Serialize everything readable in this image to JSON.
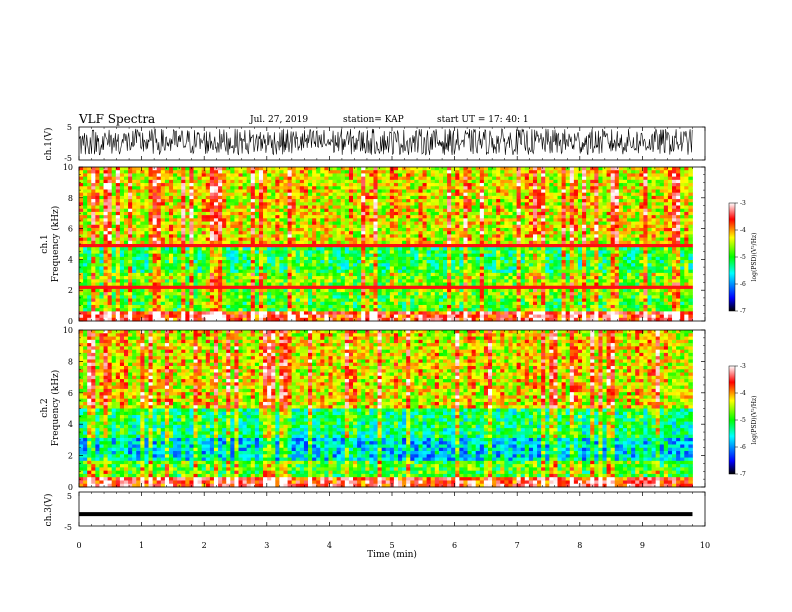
{
  "header": {
    "title": "VLF Spectra",
    "date": "Jul. 27, 2019",
    "station": "station= KAP",
    "start": "start UT = 17: 40: 1"
  },
  "chart_data": [
    {
      "type": "line",
      "name": "ch.1 waveform",
      "ylabel": "ch.1(V)",
      "ylim": [
        -5,
        5
      ],
      "yticks": [
        "5",
        "-5"
      ],
      "x": [
        0,
        0.25,
        0.5,
        0.75,
        1,
        1.25,
        1.5,
        1.75,
        2,
        2.25,
        2.5,
        2.75,
        3,
        3.25,
        3.5,
        3.75,
        4,
        4.25,
        4.5,
        4.75,
        5,
        5.25,
        5.5,
        5.75,
        6,
        6.25,
        6.5,
        6.75,
        7,
        7.25,
        7.5,
        7.75,
        8,
        8.25,
        8.5,
        8.75,
        9,
        9.25,
        9.5,
        9.75
      ],
      "y_range_approx": [
        -3.5,
        4.5
      ]
    },
    {
      "type": "heatmap",
      "name": "ch.1 spectrogram",
      "ylabel": "ch.1\nFrequency (kHz)",
      "ylim": [
        0,
        10
      ],
      "yticks": [
        "0",
        "2",
        "4",
        "6",
        "8",
        "10"
      ],
      "colorbar": {
        "label": "log(PSD)(V²/Hz)",
        "range": [
          -7,
          -3
        ],
        "ticks": [
          "-3",
          "-4",
          "-5",
          "-6",
          "-7"
        ],
        "colors": [
          "#000000",
          "#0000ff",
          "#00ffff",
          "#00ff00",
          "#ffff00",
          "#ff0000",
          "#ffffff"
        ]
      },
      "x_extent_min": [
        0,
        9.8
      ]
    },
    {
      "type": "heatmap",
      "name": "ch.2 spectrogram",
      "ylabel": "ch.2\nFrequency (kHz)",
      "ylim": [
        0,
        10
      ],
      "yticks": [
        "0",
        "2",
        "4",
        "6",
        "8",
        "10"
      ],
      "colorbar": {
        "label": "log(PSD)(V²/Hz)",
        "range": [
          -7,
          -3
        ],
        "ticks": [
          "-3",
          "-4",
          "-5",
          "-6",
          "-7"
        ],
        "colors": [
          "#000000",
          "#0000ff",
          "#00ffff",
          "#00ff00",
          "#ffff00",
          "#ff0000",
          "#ffffff"
        ]
      },
      "x_extent_min": [
        0,
        9.8
      ]
    },
    {
      "type": "line",
      "name": "ch.3 waveform",
      "ylabel": "ch.3(V)",
      "ylim": [
        -5,
        5
      ],
      "yticks": [
        "5",
        "-5"
      ],
      "x": [
        0,
        9.8
      ],
      "y": [
        -1.5,
        -1.5
      ]
    }
  ],
  "xaxis": {
    "label": "Time (min)",
    "range": [
      0,
      10
    ],
    "ticks": [
      "0",
      "1",
      "2",
      "3",
      "4",
      "5",
      "6",
      "7",
      "8",
      "9",
      "10"
    ]
  }
}
